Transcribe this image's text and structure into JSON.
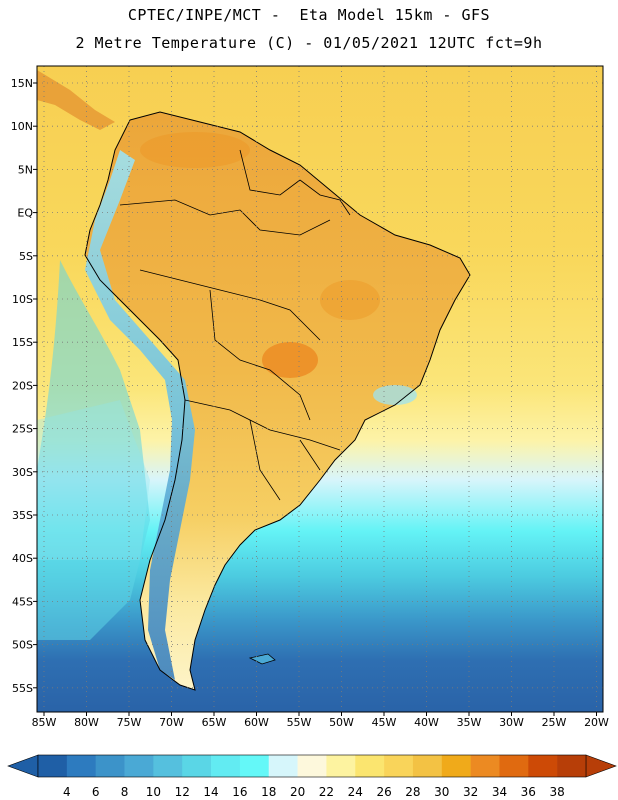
{
  "header": {
    "line1": "CPTEC/INPE/MCT -  Eta Model 15km - GFS",
    "line2": "2 Metre Temperature (C) - 01/05/2021 12UTC fct=9h"
  },
  "map": {
    "lat_labels": [
      "15N",
      "10N",
      "5N",
      "EQ",
      "5S",
      "10S",
      "15S",
      "20S",
      "25S",
      "30S",
      "35S",
      "40S",
      "45S",
      "50S",
      "55S"
    ],
    "lon_labels": [
      "85W",
      "80W",
      "75W",
      "70W",
      "65W",
      "60W",
      "55W",
      "50W",
      "45W",
      "40W",
      "35W",
      "30W",
      "25W",
      "20W"
    ]
  },
  "colorbar": {
    "labels": [
      "4",
      "6",
      "8",
      "10",
      "12",
      "14",
      "16",
      "18",
      "20",
      "22",
      "24",
      "26",
      "28",
      "30",
      "32",
      "34",
      "36",
      "38"
    ],
    "colors": [
      "#1f5fa6",
      "#2d7bbf",
      "#3c93c9",
      "#4aa9d5",
      "#55c0de",
      "#5ad6e6",
      "#62ebf2",
      "#64f8f8",
      "#d6f6fb",
      "#fdf8dc",
      "#fdf3a0",
      "#fbe56f",
      "#f9d45a",
      "#f3c244",
      "#f0aa1a",
      "#ec8a22",
      "#e06a10",
      "#cd4a06",
      "#b73e08"
    ],
    "low_arrow_color": "#1f5fa6",
    "high_arrow_color": "#b73e08"
  }
}
